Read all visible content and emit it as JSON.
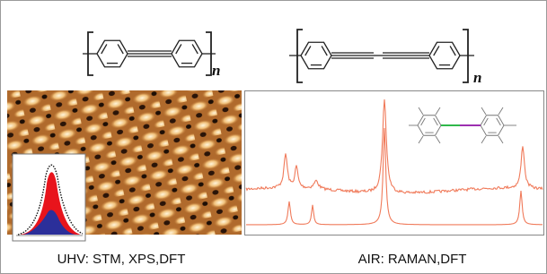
{
  "panels": [
    {
      "polymer_index": "n",
      "caption": "UHV: STM, XPS,DFT"
    },
    {
      "polymer_index": "n",
      "caption": "AIR: RAMAN,DFT"
    }
  ]
}
